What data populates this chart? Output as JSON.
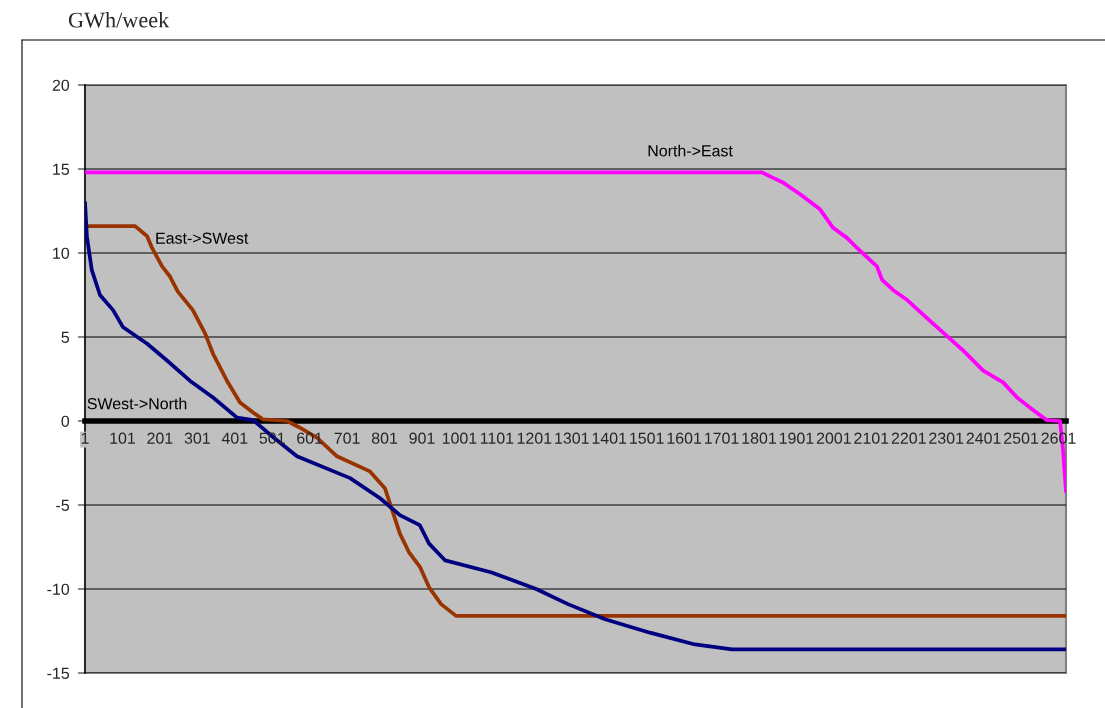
{
  "chart_data": {
    "type": "line",
    "ylabel": "GWh/week",
    "xlim": [
      1,
      2621
    ],
    "xticks": [
      1,
      101,
      201,
      301,
      401,
      501,
      601,
      701,
      801,
      901,
      1001,
      1101,
      1201,
      1301,
      1401,
      1501,
      1601,
      1701,
      1801,
      1901,
      2001,
      2101,
      2201,
      2301,
      2401,
      2501,
      2601
    ],
    "ylim": [
      -15,
      20
    ],
    "yticks": [
      -15,
      -10,
      -5,
      0,
      5,
      10,
      15,
      20
    ],
    "grid": "y",
    "legend": false,
    "marker": "none",
    "line_style": "solid",
    "series": [
      {
        "name": "North->East",
        "color": "#ff00ff",
        "x": [
          1,
          1809,
          1836,
          1865,
          1911,
          1964,
          1999,
          2036,
          2063,
          2116,
          2130,
          2159,
          2197,
          2266,
          2346,
          2400,
          2453,
          2490,
          2533,
          2570,
          2605,
          2613,
          2621
        ],
        "values": [
          14.8,
          14.8,
          14.5,
          14.2,
          13.5,
          12.6,
          11.5,
          10.9,
          10.3,
          9.2,
          8.4,
          7.8,
          7.2,
          5.8,
          4.2,
          3.0,
          2.3,
          1.4,
          0.65,
          0.05,
          0,
          -1.7,
          -4.2
        ]
      },
      {
        "name": "East->SWest",
        "color": "#993300",
        "x": [
          1,
          135,
          167,
          180,
          207,
          228,
          249,
          289,
          322,
          343,
          380,
          415,
          450,
          476,
          541,
          575,
          621,
          674,
          762,
          802,
          842,
          866,
          896,
          920,
          952,
          992,
          2621
        ],
        "values": [
          11.6,
          11.6,
          11.0,
          10.3,
          9.2,
          8.6,
          7.7,
          6.6,
          5.2,
          4.0,
          2.4,
          1.1,
          0.5,
          0.1,
          0,
          -0.4,
          -1.0,
          -2.1,
          -3.0,
          -4.0,
          -6.7,
          -7.8,
          -8.7,
          -9.9,
          -10.9,
          -11.6,
          -11.6
        ]
      },
      {
        "name": "SWest->North",
        "color": "#000080",
        "x": [
          1,
          6,
          19,
          41,
          76,
          102,
          167,
          220,
          281,
          343,
          407,
          450,
          503,
          567,
          709,
          789,
          842,
          895,
          920,
          963,
          1085,
          1206,
          1291,
          1390,
          1510,
          1630,
          1729,
          2621
        ],
        "values": [
          13.0,
          11.0,
          9.0,
          7.5,
          6.6,
          5.6,
          4.6,
          3.6,
          2.4,
          1.4,
          0.2,
          0.05,
          -0.95,
          -2.1,
          -3.4,
          -4.6,
          -5.6,
          -6.2,
          -7.3,
          -8.3,
          -9.0,
          -10.0,
          -10.9,
          -11.8,
          -12.6,
          -13.3,
          -13.6,
          -13.6
        ]
      }
    ]
  }
}
